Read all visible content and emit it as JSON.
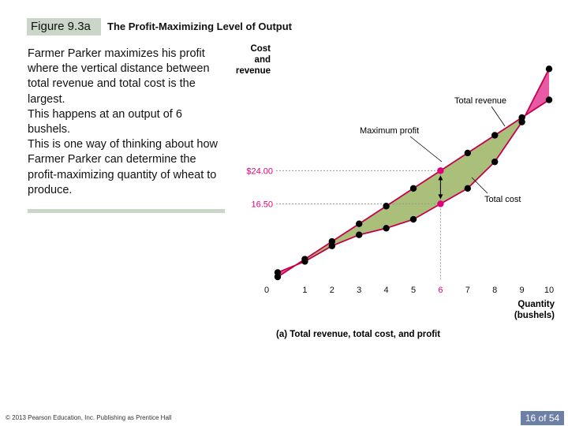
{
  "header": {
    "figure_label": "Figure 9.3a",
    "figure_title": "The Profit-Maximizing Level of Output"
  },
  "body_text": [
    "Farmer Parker maximizes his profit where the vertical distance between total revenue and total cost is the largest.",
    "This happens at an output of 6 bushels.",
    "This is one way of thinking about how Farmer Parker can determine the profit-maximizing quantity of wheat to produce."
  ],
  "footer": {
    "copyright": "© 2013 Pearson Education, Inc. Publishing as Prentice Hall",
    "page_indicator": "16 of 54"
  },
  "colors": {
    "revenue_line": "#c4004a",
    "cost_line": "#c4004a",
    "profit_fill": "#aabf7a",
    "loss_fill": "#e85aa6",
    "points": "#000000",
    "highlight_points": "#e0007a",
    "highlight_tick": "#e0007a",
    "dotted_guides": "#999999",
    "accent_label": "#e0007a"
  },
  "chart_data": {
    "type": "line",
    "title": "(a) Total revenue, total cost, and profit",
    "ylabel": "Cost and revenue",
    "xlabel": "Quantity (bushels)",
    "x": [
      0,
      1,
      2,
      3,
      4,
      5,
      6,
      7,
      8,
      9,
      10
    ],
    "x_tick_labels": [
      "0",
      "1",
      "2",
      "3",
      "4",
      "5",
      "6",
      "7",
      "8",
      "9",
      "10"
    ],
    "highlight_x": 6,
    "ylim": [
      -1.5,
      41
    ],
    "series": [
      {
        "name": "Total revenue",
        "values": [
          0,
          4,
          8,
          12,
          16,
          20,
          24,
          28,
          32,
          36,
          40
        ]
      },
      {
        "name": "Total cost",
        "values": [
          1,
          3.5,
          7,
          9.5,
          11,
          13,
          16.5,
          20,
          26,
          35,
          47
        ]
      }
    ],
    "y_marked": [
      {
        "label": "$24.00",
        "value": 24
      },
      {
        "label": "16.50",
        "value": 16.5
      }
    ],
    "annotations": {
      "total_revenue": "Total revenue",
      "total_cost": "Total cost",
      "maximum_profit": "Maximum profit"
    },
    "ylabel_lines": [
      "Cost",
      "and",
      "revenue"
    ],
    "xlabel_lines": [
      "Quantity",
      "(bushels)"
    ]
  }
}
